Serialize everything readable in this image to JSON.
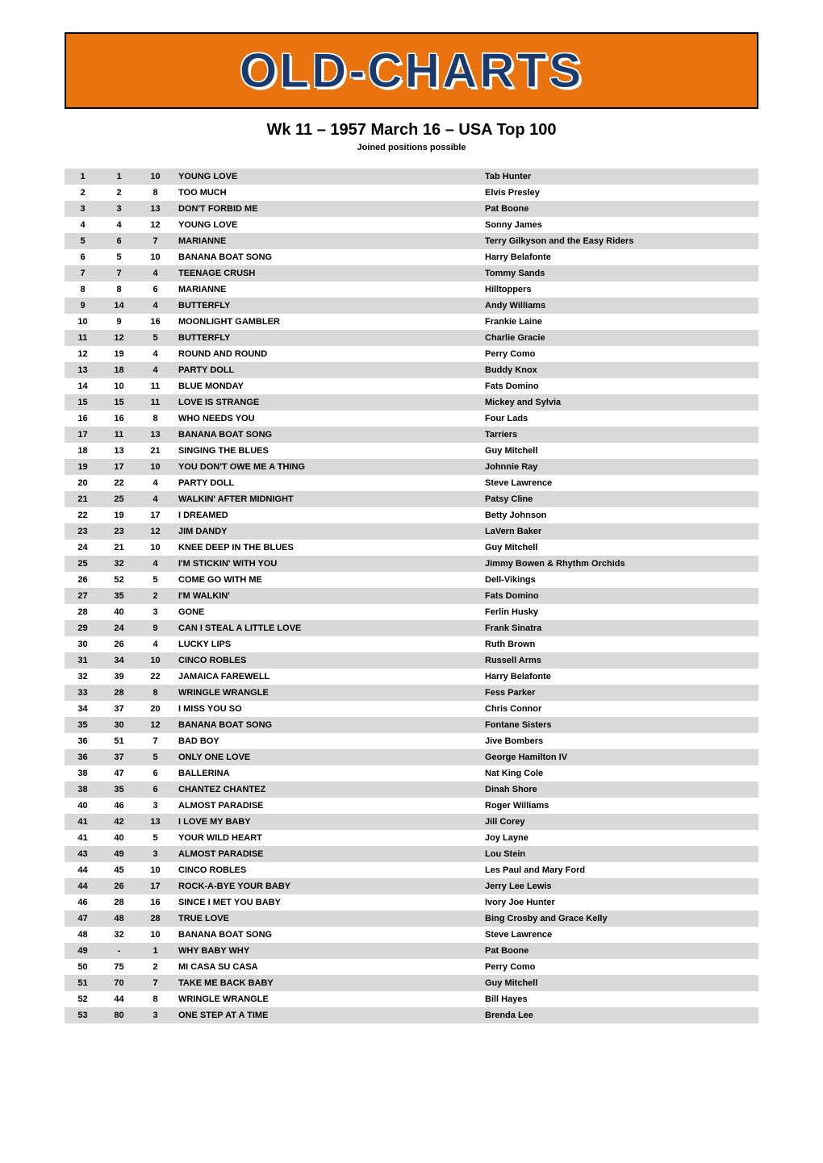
{
  "logo": {
    "text": "OLD-CHARTS",
    "banner_bg": "#e8730f",
    "text_color": "#1a3a6e",
    "outline_color": "#ffffff",
    "border_color": "#000000"
  },
  "header": {
    "title": "Wk 11 – 1957 March 16 – USA Top 100",
    "subtitle": "Joined positions possible"
  },
  "table": {
    "row_even_bg": "#d9d9d9",
    "row_odd_bg": "#ffffff",
    "text_color": "#000000",
    "fontsize": 11,
    "columns": [
      "pos",
      "last",
      "weeks",
      "title",
      "artist"
    ],
    "rows": [
      {
        "pos": "1",
        "last": "1",
        "weeks": "10",
        "title": "YOUNG LOVE",
        "artist": "Tab Hunter"
      },
      {
        "pos": "2",
        "last": "2",
        "weeks": "8",
        "title": "TOO MUCH",
        "artist": "Elvis Presley"
      },
      {
        "pos": "3",
        "last": "3",
        "weeks": "13",
        "title": "DON'T FORBID ME",
        "artist": "Pat Boone"
      },
      {
        "pos": "4",
        "last": "4",
        "weeks": "12",
        "title": "YOUNG LOVE",
        "artist": "Sonny James"
      },
      {
        "pos": "5",
        "last": "6",
        "weeks": "7",
        "title": "MARIANNE",
        "artist": "Terry Gilkyson and the Easy Riders"
      },
      {
        "pos": "6",
        "last": "5",
        "weeks": "10",
        "title": "BANANA BOAT SONG",
        "artist": "Harry Belafonte"
      },
      {
        "pos": "7",
        "last": "7",
        "weeks": "4",
        "title": "TEENAGE CRUSH",
        "artist": "Tommy Sands"
      },
      {
        "pos": "8",
        "last": "8",
        "weeks": "6",
        "title": "MARIANNE",
        "artist": "Hilltoppers"
      },
      {
        "pos": "9",
        "last": "14",
        "weeks": "4",
        "title": "BUTTERFLY",
        "artist": "Andy Williams"
      },
      {
        "pos": "10",
        "last": "9",
        "weeks": "16",
        "title": "MOONLIGHT GAMBLER",
        "artist": "Frankie Laine"
      },
      {
        "pos": "11",
        "last": "12",
        "weeks": "5",
        "title": "BUTTERFLY",
        "artist": "Charlie Gracie"
      },
      {
        "pos": "12",
        "last": "19",
        "weeks": "4",
        "title": "ROUND AND ROUND",
        "artist": "Perry Como"
      },
      {
        "pos": "13",
        "last": "18",
        "weeks": "4",
        "title": "PARTY DOLL",
        "artist": "Buddy Knox"
      },
      {
        "pos": "14",
        "last": "10",
        "weeks": "11",
        "title": "BLUE MONDAY",
        "artist": "Fats Domino"
      },
      {
        "pos": "15",
        "last": "15",
        "weeks": "11",
        "title": "LOVE IS STRANGE",
        "artist": "Mickey and Sylvia"
      },
      {
        "pos": "16",
        "last": "16",
        "weeks": "8",
        "title": "WHO NEEDS YOU",
        "artist": "Four Lads"
      },
      {
        "pos": "17",
        "last": "11",
        "weeks": "13",
        "title": "BANANA BOAT SONG",
        "artist": "Tarriers"
      },
      {
        "pos": "18",
        "last": "13",
        "weeks": "21",
        "title": "SINGING THE BLUES",
        "artist": "Guy Mitchell"
      },
      {
        "pos": "19",
        "last": "17",
        "weeks": "10",
        "title": "YOU DON'T OWE ME A THING",
        "artist": "Johnnie Ray"
      },
      {
        "pos": "20",
        "last": "22",
        "weeks": "4",
        "title": "PARTY DOLL",
        "artist": "Steve Lawrence"
      },
      {
        "pos": "21",
        "last": "25",
        "weeks": "4",
        "title": "WALKIN' AFTER MIDNIGHT",
        "artist": "Patsy Cline"
      },
      {
        "pos": "22",
        "last": "19",
        "weeks": "17",
        "title": "I DREAMED",
        "artist": "Betty Johnson"
      },
      {
        "pos": "23",
        "last": "23",
        "weeks": "12",
        "title": "JIM DANDY",
        "artist": "LaVern Baker"
      },
      {
        "pos": "24",
        "last": "21",
        "weeks": "10",
        "title": "KNEE DEEP IN THE BLUES",
        "artist": "Guy Mitchell"
      },
      {
        "pos": "25",
        "last": "32",
        "weeks": "4",
        "title": "I'M STICKIN' WITH YOU",
        "artist": "Jimmy Bowen & Rhythm Orchids"
      },
      {
        "pos": "26",
        "last": "52",
        "weeks": "5",
        "title": "COME GO WITH ME",
        "artist": "Dell-Vikings"
      },
      {
        "pos": "27",
        "last": "35",
        "weeks": "2",
        "title": "I'M WALKIN'",
        "artist": "Fats Domino"
      },
      {
        "pos": "28",
        "last": "40",
        "weeks": "3",
        "title": "GONE",
        "artist": "Ferlin Husky"
      },
      {
        "pos": "29",
        "last": "24",
        "weeks": "9",
        "title": "CAN I STEAL A LITTLE LOVE",
        "artist": "Frank Sinatra"
      },
      {
        "pos": "30",
        "last": "26",
        "weeks": "4",
        "title": "LUCKY LIPS",
        "artist": "Ruth Brown"
      },
      {
        "pos": "31",
        "last": "34",
        "weeks": "10",
        "title": "CINCO ROBLES",
        "artist": "Russell Arms"
      },
      {
        "pos": "32",
        "last": "39",
        "weeks": "22",
        "title": "JAMAICA FAREWELL",
        "artist": "Harry Belafonte"
      },
      {
        "pos": "33",
        "last": "28",
        "weeks": "8",
        "title": "WRINGLE WRANGLE",
        "artist": "Fess Parker"
      },
      {
        "pos": "34",
        "last": "37",
        "weeks": "20",
        "title": "I MISS YOU SO",
        "artist": "Chris Connor"
      },
      {
        "pos": "35",
        "last": "30",
        "weeks": "12",
        "title": "BANANA BOAT SONG",
        "artist": "Fontane Sisters"
      },
      {
        "pos": "36",
        "last": "51",
        "weeks": "7",
        "title": "BAD BOY",
        "artist": "Jive Bombers"
      },
      {
        "pos": "36",
        "last": "37",
        "weeks": "5",
        "title": "ONLY ONE LOVE",
        "artist": "George Hamilton IV"
      },
      {
        "pos": "38",
        "last": "47",
        "weeks": "6",
        "title": "BALLERINA",
        "artist": "Nat King Cole"
      },
      {
        "pos": "38",
        "last": "35",
        "weeks": "6",
        "title": "CHANTEZ CHANTEZ",
        "artist": "Dinah Shore"
      },
      {
        "pos": "40",
        "last": "46",
        "weeks": "3",
        "title": "ALMOST PARADISE",
        "artist": "Roger Williams"
      },
      {
        "pos": "41",
        "last": "42",
        "weeks": "13",
        "title": "I LOVE MY BABY",
        "artist": "Jill Corey"
      },
      {
        "pos": "41",
        "last": "40",
        "weeks": "5",
        "title": "YOUR WILD HEART",
        "artist": "Joy Layne"
      },
      {
        "pos": "43",
        "last": "49",
        "weeks": "3",
        "title": "ALMOST PARADISE",
        "artist": "Lou Stein"
      },
      {
        "pos": "44",
        "last": "45",
        "weeks": "10",
        "title": "CINCO ROBLES",
        "artist": "Les Paul and Mary Ford"
      },
      {
        "pos": "44",
        "last": "26",
        "weeks": "17",
        "title": "ROCK-A-BYE YOUR BABY",
        "artist": "Jerry Lee Lewis"
      },
      {
        "pos": "46",
        "last": "28",
        "weeks": "16",
        "title": "SINCE I MET YOU BABY",
        "artist": "Ivory Joe Hunter"
      },
      {
        "pos": "47",
        "last": "48",
        "weeks": "28",
        "title": "TRUE LOVE",
        "artist": "Bing Crosby and Grace Kelly"
      },
      {
        "pos": "48",
        "last": "32",
        "weeks": "10",
        "title": "BANANA BOAT SONG",
        "artist": "Steve Lawrence"
      },
      {
        "pos": "49",
        "last": "-",
        "weeks": "1",
        "title": "WHY BABY WHY",
        "artist": "Pat Boone"
      },
      {
        "pos": "50",
        "last": "75",
        "weeks": "2",
        "title": "MI CASA SU CASA",
        "artist": "Perry Como"
      },
      {
        "pos": "51",
        "last": "70",
        "weeks": "7",
        "title": "TAKE ME BACK BABY",
        "artist": "Guy Mitchell"
      },
      {
        "pos": "52",
        "last": "44",
        "weeks": "8",
        "title": "WRINGLE WRANGLE",
        "artist": "Bill Hayes"
      },
      {
        "pos": "53",
        "last": "80",
        "weeks": "3",
        "title": "ONE STEP AT A TIME",
        "artist": "Brenda Lee"
      }
    ]
  }
}
